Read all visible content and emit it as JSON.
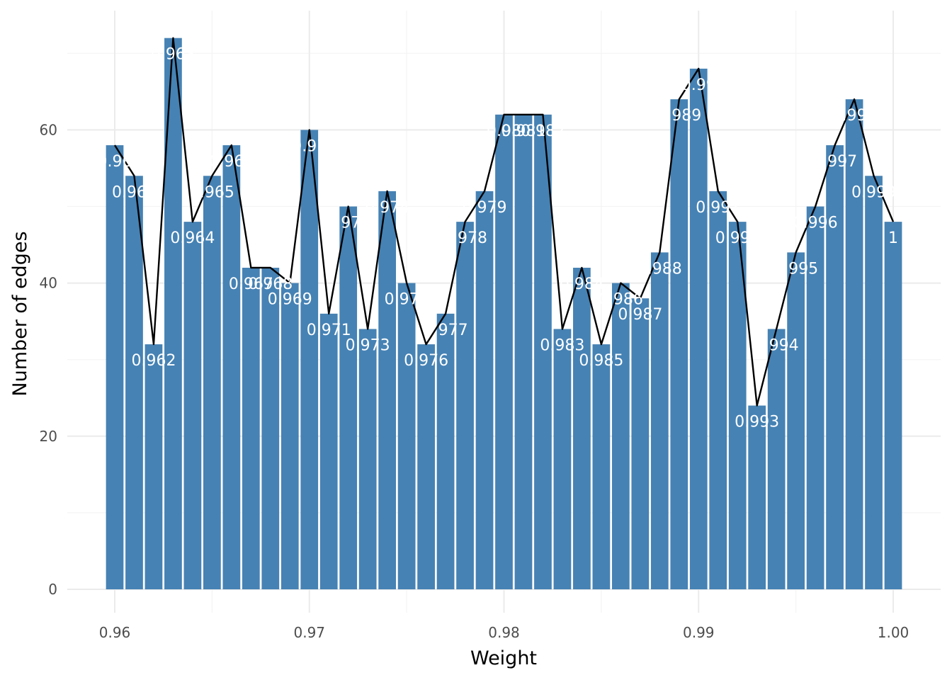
{
  "chart_data": {
    "type": "bar",
    "xlabel": "Weight",
    "ylabel": "Number of edges",
    "xlim": [
      0.958,
      1.002
    ],
    "ylim": [
      0,
      72
    ],
    "x_ticks": [
      "0.96",
      "0.97",
      "0.98",
      "0.99",
      "1.00"
    ],
    "x_tick_values": [
      0.96,
      0.97,
      0.98,
      0.99,
      1.0
    ],
    "y_ticks": [
      "0",
      "20",
      "40",
      "60"
    ],
    "y_tick_values": [
      0,
      20,
      40,
      60
    ],
    "grid": true,
    "bar_color": "#4682b4",
    "line_color": "#000000",
    "x": [
      0.96,
      0.961,
      0.962,
      0.963,
      0.964,
      0.965,
      0.966,
      0.967,
      0.968,
      0.969,
      0.97,
      0.971,
      0.972,
      0.973,
      0.974,
      0.975,
      0.976,
      0.977,
      0.978,
      0.979,
      0.98,
      0.981,
      0.982,
      0.983,
      0.984,
      0.985,
      0.986,
      0.987,
      0.988,
      0.989,
      0.99,
      0.991,
      0.992,
      0.993,
      0.994,
      0.995,
      0.996,
      0.997,
      0.998,
      0.999,
      1.0
    ],
    "values": [
      58,
      54,
      32,
      72,
      48,
      54,
      58,
      42,
      42,
      40,
      60,
      36,
      50,
      34,
      52,
      40,
      32,
      36,
      48,
      52,
      62,
      62,
      62,
      34,
      42,
      32,
      40,
      38,
      44,
      64,
      68,
      52,
      48,
      24,
      34,
      44,
      50,
      58,
      64,
      54,
      48
    ],
    "labels": [
      "0.96",
      "0.961",
      "0.962",
      "0.963",
      "0.964",
      "0.965",
      "0.966",
      "0.967",
      "0.968",
      "0.969",
      "0.97",
      "0.971",
      "0.972",
      "0.973",
      "0.974",
      "0.975",
      "0.976",
      "0.977",
      "0.978",
      "0.979",
      "0.98",
      "0.981",
      "0.982",
      "0.983",
      "0.984",
      "0.985",
      "0.986",
      "0.987",
      "0.988",
      "0.989",
      "0.99",
      "0.991",
      "0.992",
      "0.993",
      "0.994",
      "0.995",
      "0.996",
      "0.997",
      "0.998",
      "0.999",
      "1"
    ]
  }
}
